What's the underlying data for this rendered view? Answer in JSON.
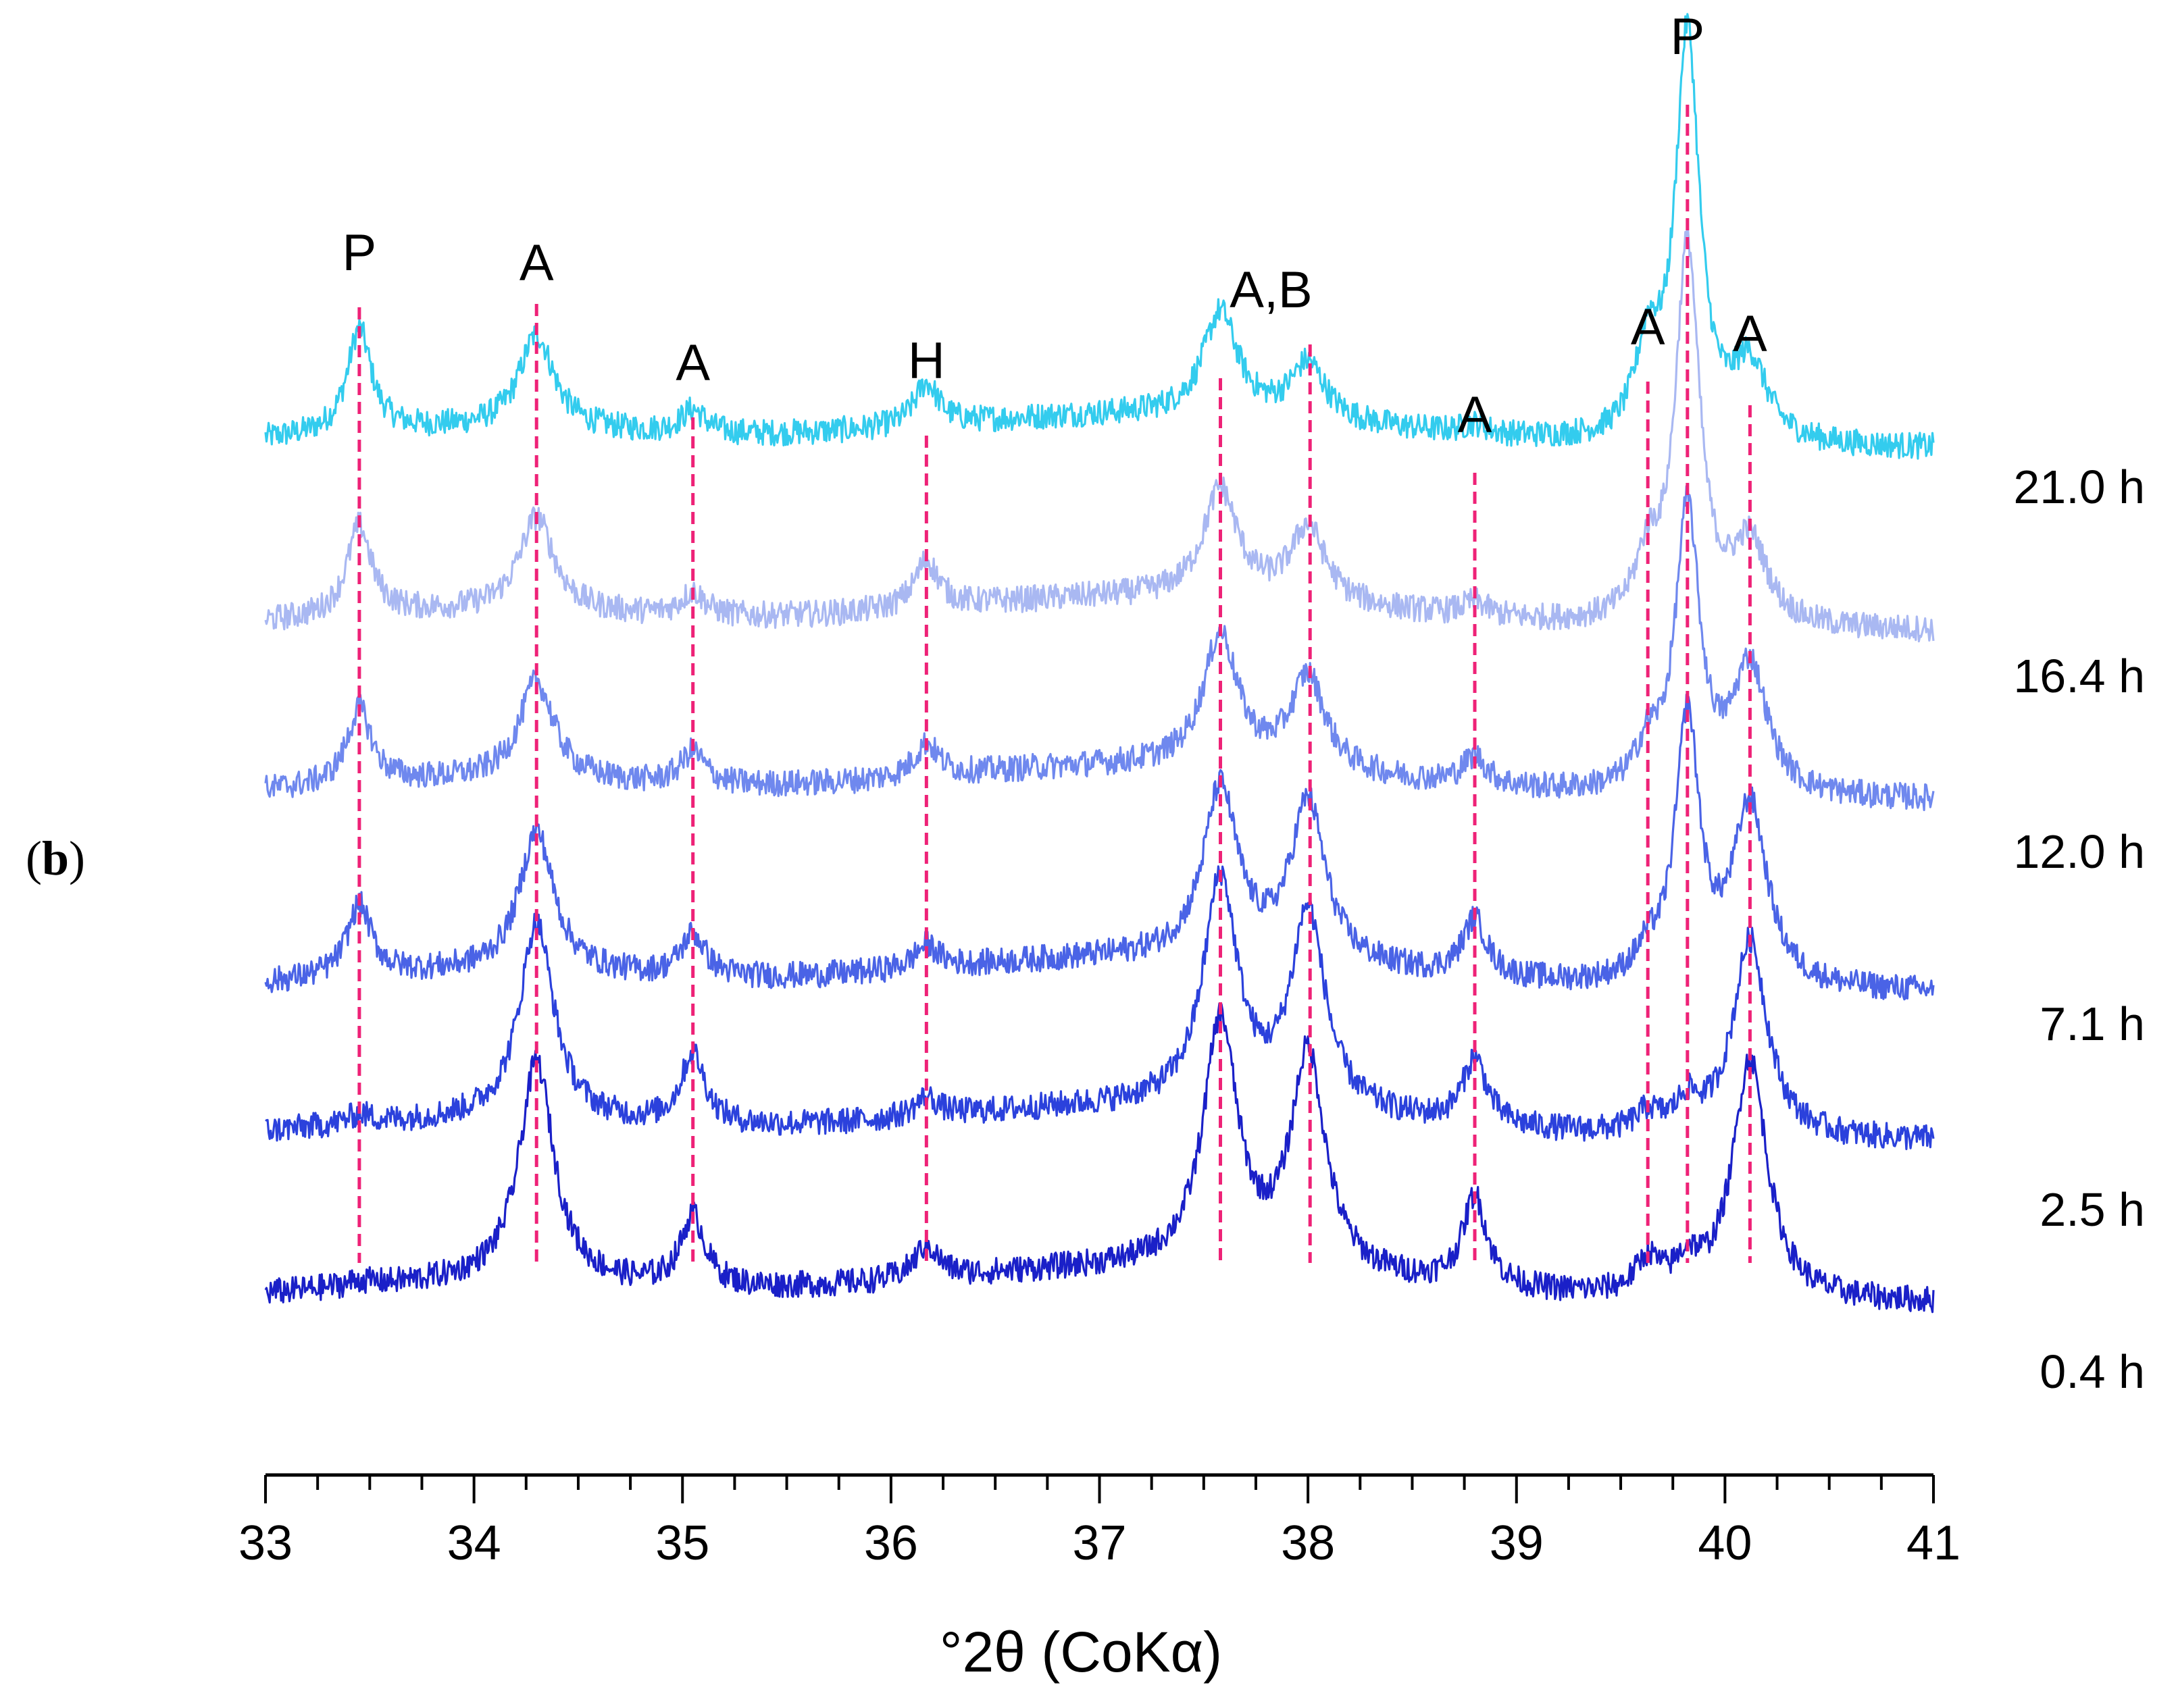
{
  "panel_label": {
    "open": "(",
    "letter": "b",
    "close": ")"
  },
  "chart_data": {
    "type": "line",
    "title": "",
    "xlabel": "°2θ (CoKα)",
    "ylabel": "",
    "xlim": [
      33,
      41
    ],
    "x_ticks": [
      "33",
      "34",
      "35",
      "36",
      "37",
      "38",
      "39",
      "40",
      "41"
    ],
    "stacked_offset": true,
    "series": [
      {
        "name": "21.0 h",
        "color": "#33ccee",
        "baseline": 0.0,
        "peaks": [
          [
            33.45,
            1.1
          ],
          [
            34.3,
            1.0
          ],
          [
            35.05,
            0.25
          ],
          [
            36.17,
            0.45
          ],
          [
            37.58,
            1.1
          ],
          [
            38.0,
            0.6
          ],
          [
            38.8,
            0.1
          ],
          [
            39.63,
            0.9
          ],
          [
            39.82,
            4.3
          ],
          [
            40.12,
            0.8
          ]
        ]
      },
      {
        "name": "16.4 h",
        "color": "#a9b8f2",
        "baseline": 0.0,
        "peaks": [
          [
            33.45,
            0.95
          ],
          [
            34.3,
            1.0
          ],
          [
            35.05,
            0.25
          ],
          [
            36.17,
            0.5
          ],
          [
            37.58,
            1.15
          ],
          [
            38.0,
            0.8
          ],
          [
            38.8,
            0.15
          ],
          [
            39.63,
            0.6
          ],
          [
            39.82,
            4.0
          ],
          [
            40.12,
            0.85
          ]
        ]
      },
      {
        "name": "12.0 h",
        "color": "#6f88ee",
        "baseline": 0.0,
        "peaks": [
          [
            33.45,
            0.8
          ],
          [
            34.3,
            1.05
          ],
          [
            35.05,
            0.35
          ],
          [
            36.17,
            0.35
          ],
          [
            37.58,
            1.4
          ],
          [
            38.0,
            1.0
          ],
          [
            38.8,
            0.3
          ],
          [
            39.63,
            0.4
          ],
          [
            39.82,
            3.0
          ],
          [
            40.12,
            1.35
          ]
        ]
      },
      {
        "name": "7.1 h",
        "color": "#4a63e6",
        "baseline": 0.0,
        "peaks": [
          [
            33.45,
            0.75
          ],
          [
            34.3,
            1.5
          ],
          [
            35.05,
            0.45
          ],
          [
            36.17,
            0.25
          ],
          [
            37.58,
            1.8
          ],
          [
            38.0,
            1.7
          ],
          [
            38.8,
            0.6
          ],
          [
            39.63,
            0.25
          ],
          [
            39.82,
            2.8
          ],
          [
            40.12,
            1.9
          ]
        ]
      },
      {
        "name": "2.5 h",
        "color": "#2b41dc",
        "baseline": 0.0,
        "peaks": [
          [
            33.45,
            0.1
          ],
          [
            34.3,
            2.1
          ],
          [
            35.05,
            0.75
          ],
          [
            36.17,
            0.2
          ],
          [
            37.58,
            2.4
          ],
          [
            38.0,
            2.1
          ],
          [
            38.8,
            0.7
          ],
          [
            39.63,
            0.2
          ],
          [
            39.82,
            0.3
          ],
          [
            40.12,
            2.1
          ]
        ]
      },
      {
        "name": "0.4 h",
        "color": "#1a20c8",
        "baseline": 0.0,
        "peaks": [
          [
            33.45,
            0.05
          ],
          [
            34.3,
            2.35
          ],
          [
            35.05,
            0.75
          ],
          [
            36.17,
            0.35
          ],
          [
            37.58,
            2.6
          ],
          [
            38.0,
            2.3
          ],
          [
            38.8,
            0.95
          ],
          [
            39.63,
            0.35
          ],
          [
            39.82,
            0.3
          ],
          [
            40.12,
            2.55
          ]
        ]
      }
    ],
    "annotations": [
      {
        "text": "P",
        "x": 33.45
      },
      {
        "text": "A",
        "x": 34.3
      },
      {
        "text": "A",
        "x": 35.05
      },
      {
        "text": "H",
        "x": 36.17
      },
      {
        "text": "A,B",
        "x": 37.58
      },
      {
        "text": "",
        "x": 38.01
      },
      {
        "text": "A",
        "x": 38.8
      },
      {
        "text": "A",
        "x": 39.63
      },
      {
        "text": "P",
        "x": 39.82
      },
      {
        "text": "A",
        "x": 40.12
      }
    ],
    "annotation_line_color": "#ee2277",
    "grid": false,
    "legend": "right"
  }
}
